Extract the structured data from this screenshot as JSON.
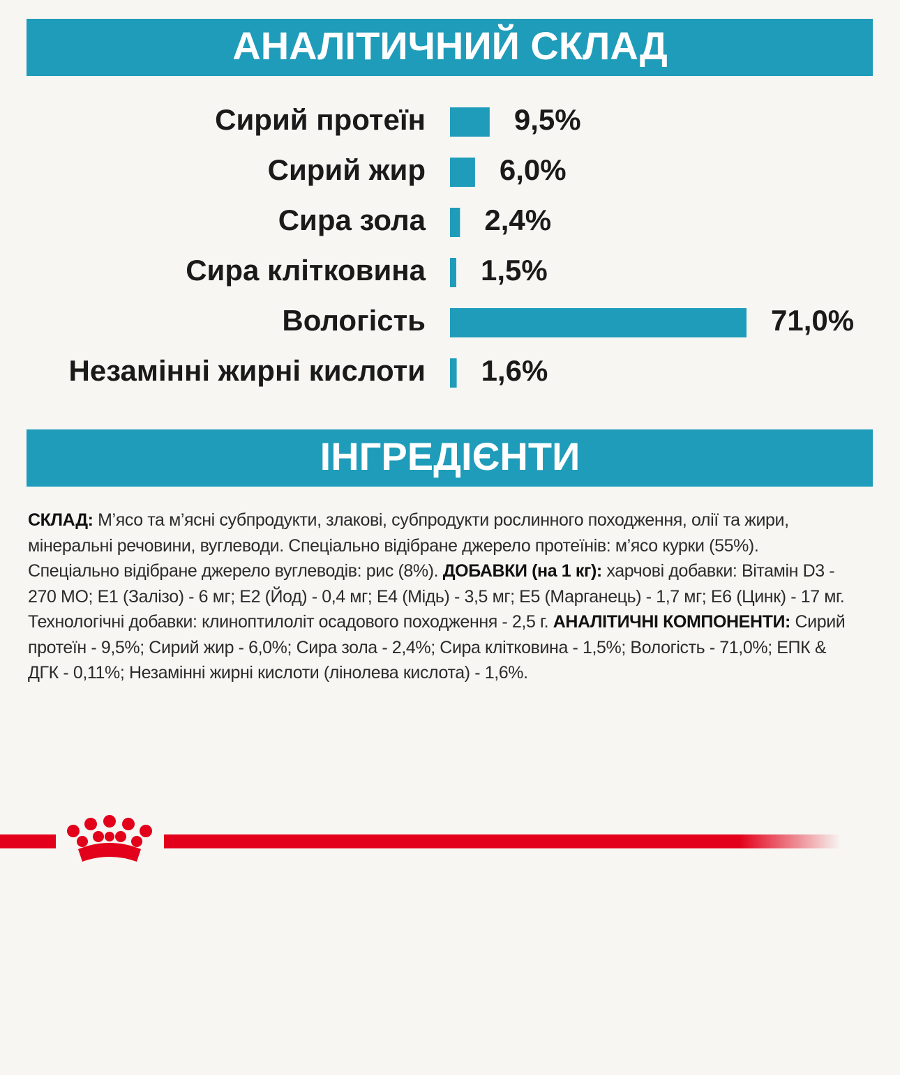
{
  "chart_data": {
    "type": "bar",
    "orientation": "horizontal",
    "title": "АНАЛІТИЧНИЙ СКЛАД",
    "categories": [
      "Сирий протеїн",
      "Сирий жир",
      "Сира зола",
      "Сира клітковина",
      "Вологість",
      "Незамінні жирні кислоти"
    ],
    "values": [
      9.5,
      6.0,
      2.4,
      1.5,
      71.0,
      1.6
    ],
    "value_labels": [
      "9,5%",
      "6,0%",
      "2,4%",
      "1,5%",
      "71,0%",
      "1,6%"
    ],
    "color": "#1f9cba"
  },
  "ingredients": {
    "title": "ІНГРЕДІЄНТИ",
    "runs": [
      {
        "text": "СКЛАД:",
        "bold": true
      },
      {
        "text": " М’ясо та м’ясні субпродукти, злакові, субпродукти рослинного походження, олії та жири, мінеральні речовини, вуглеводи. Спеціально відібране джерело протеїнів: м’ясо курки (55%). Спеціально відібране джерело вуглеводів: рис (8%). ",
        "bold": false
      },
      {
        "text": "ДОБАВКИ (на 1 кг):",
        "bold": true
      },
      {
        "text": " харчові добавки: Вітамін D3 - 270 МО; Е1 (Залізо) - 6 мг; Е2 (Йод) - 0,4 мг; Е4 (Мідь) - 3,5 мг; Е5 (Марганець) - 1,7 мг; Е6 (Цинк) - 17 мг. Технологічні добавки: клиноптилоліт осадового походження - 2,5 г. ",
        "bold": false
      },
      {
        "text": "АНАЛІТИЧНІ КОМПОНЕНТИ:",
        "bold": true
      },
      {
        "text": " Сирий протеїн - 9,5%; Сирий жир - 6,0%; Сира зола - 2,4%; Сира клітковина - 1,5%; Вологість - 71,0%; ЕПК & ДГК - 0,11%; Незамінні жирні кислоти (лінолева кислота) - 1,6%.",
        "bold": false
      }
    ]
  }
}
